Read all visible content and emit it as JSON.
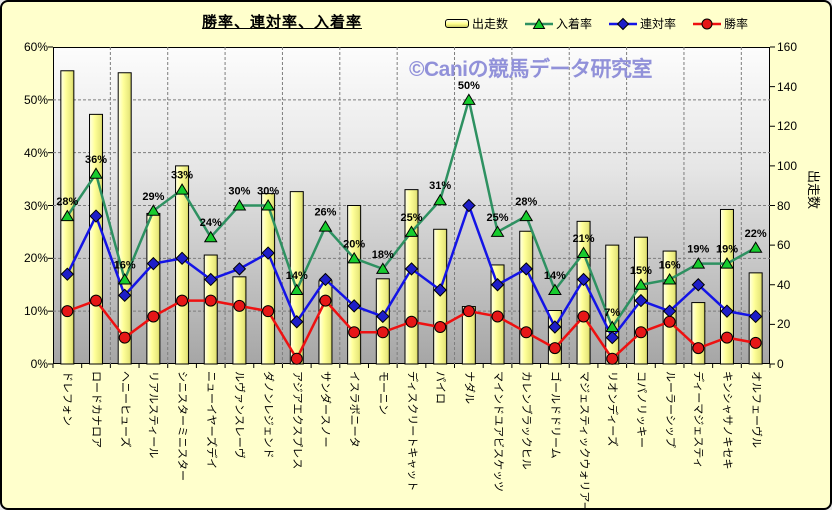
{
  "title": "勝率、連対率、入着率",
  "watermark": "©Caniの競馬データ研究室",
  "chart_data": {
    "type": "bar+line-combo",
    "title": "勝率、連対率、入着率",
    "categories": [
      "ドレフォン",
      "ロードカナロア",
      "ヘニーヒューズ",
      "リアルスティール",
      "シニスターミニスター",
      "ニューイヤーズデイ",
      "ルヴァンスレーヴ",
      "ダノンレジェンド",
      "アジアエクスプレス",
      "サンダースノー",
      "イスラボニータ",
      "モーニン",
      "ディスクリートキャット",
      "パイロ",
      "ナダル",
      "マインドユアビスケッツ",
      "カレンブラックヒル",
      "ゴールドドリーム",
      "マジェスティックウォリアー",
      "リオンディーズ",
      "コパノリッキー",
      "ルーラーシップ",
      "ディーマジェスティ",
      "キンシャサノキセキ",
      "オルフェーヴル"
    ],
    "series": [
      {
        "name": "出走数",
        "type": "bar",
        "axis": "right",
        "values": [
          148,
          126,
          147,
          76,
          100,
          55,
          44,
          86,
          87,
          42,
          80,
          43,
          88,
          68,
          29,
          50,
          67,
          27,
          72,
          60,
          64,
          57,
          31,
          78,
          46
        ]
      },
      {
        "name": "入着率",
        "type": "line",
        "marker": "triangle",
        "axis": "left",
        "show_labels": true,
        "label_suffix": "%",
        "values": [
          28,
          36,
          16,
          29,
          33,
          24,
          30,
          30,
          14,
          26,
          20,
          18,
          25,
          31,
          50,
          25,
          28,
          14,
          21,
          7,
          15,
          16,
          19,
          19,
          22
        ]
      },
      {
        "name": "連対率",
        "type": "line",
        "marker": "diamond",
        "axis": "left",
        "values": [
          17,
          28,
          13,
          19,
          20,
          16,
          18,
          21,
          8,
          16,
          11,
          9,
          18,
          14,
          30,
          15,
          18,
          7,
          16,
          5,
          12,
          10,
          15,
          10,
          9
        ]
      },
      {
        "name": "勝率",
        "type": "line",
        "marker": "circle",
        "axis": "left",
        "values": [
          10,
          12,
          5,
          9,
          12,
          12,
          11,
          10,
          1,
          12,
          6,
          6,
          8,
          7,
          10,
          9,
          6,
          3,
          9,
          1,
          6,
          8,
          3,
          5,
          4
        ]
      }
    ],
    "left_axis": {
      "min": 0,
      "max": 60,
      "step": 10,
      "suffix": "%",
      "ticks": [
        "0%",
        "10%",
        "20%",
        "30%",
        "40%",
        "50%",
        "60%"
      ]
    },
    "right_axis": {
      "min": 0,
      "max": 160,
      "step": 20,
      "title": "出走数",
      "ticks": [
        "0",
        "20",
        "40",
        "60",
        "80",
        "100",
        "120",
        "140",
        "160"
      ]
    },
    "grid": {
      "horizontal": true,
      "vertical_every_n_categories": 2,
      "style": "dashed"
    },
    "legend_position": "top-right",
    "colors": {
      "background": "#FFFFCC",
      "bar_fill_light": "#FFFFE8",
      "bar_fill_mid": "#FFFF99",
      "bar_fill_dark": "#C9C95A",
      "bar_border": "#000000",
      "line_green": "#2E9161",
      "marker_green": "#17CC2E",
      "line_blue": "#1414E6",
      "marker_blue": "#1E1EC8",
      "line_red": "#EE1111",
      "marker_red": "#E61717",
      "watermark": "#9191D9"
    }
  }
}
